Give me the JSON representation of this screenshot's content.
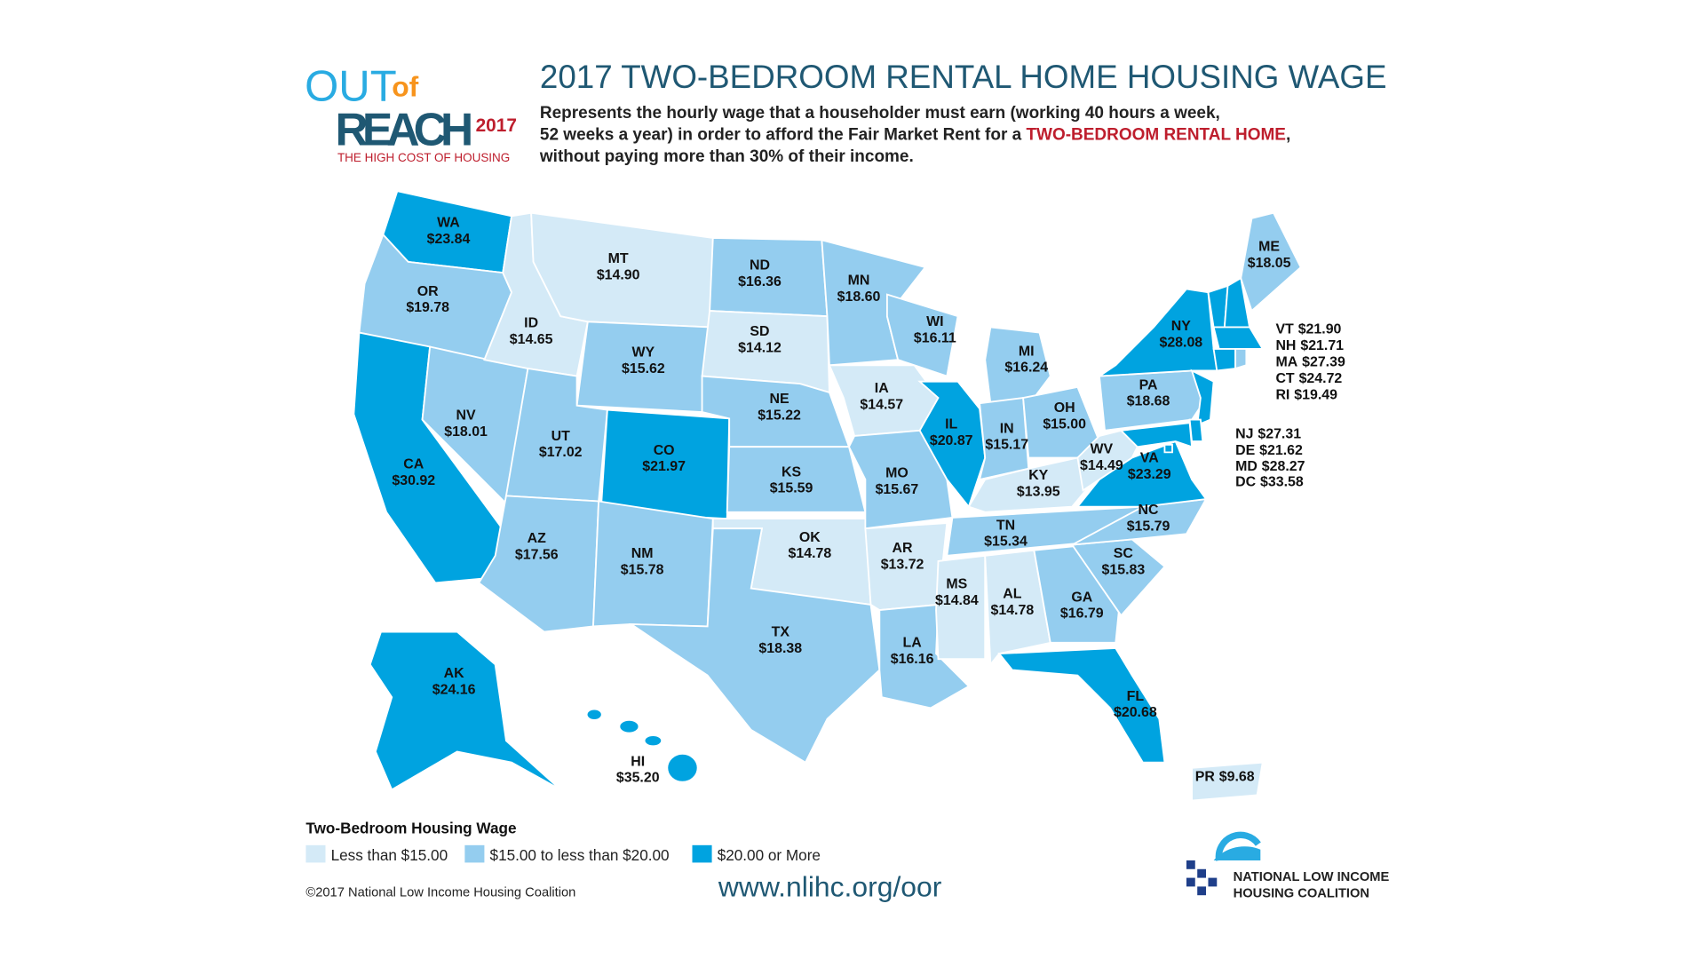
{
  "logo": {
    "out": "OUT",
    "of": "of",
    "reach": "REACH",
    "year": "2017",
    "tagline": "THE HIGH COST OF HOUSING"
  },
  "header": {
    "title": "2017 TWO-BEDROOM RENTAL HOME HOUSING WAGE",
    "line1": "Represents the hourly wage that a householder must earn (working 40 hours a week,",
    "line2": "52 weeks a year) in order to afford the Fair Market Rent for a ",
    "highlight": "TWO-BEDROOM RENTAL HOME",
    "line2_end": ",",
    "line3": "without paying more than 30% of their income."
  },
  "states": [
    {
      "abbr": "WA",
      "wage": 23.84,
      "wage_label": "$23.84"
    },
    {
      "abbr": "OR",
      "wage": 19.78,
      "wage_label": "$19.78"
    },
    {
      "abbr": "CA",
      "wage": 30.92,
      "wage_label": "$30.92"
    },
    {
      "abbr": "NV",
      "wage": 18.01,
      "wage_label": "$18.01"
    },
    {
      "abbr": "ID",
      "wage": 14.65,
      "wage_label": "$14.65"
    },
    {
      "abbr": "MT",
      "wage": 14.9,
      "wage_label": "$14.90"
    },
    {
      "abbr": "WY",
      "wage": 15.62,
      "wage_label": "$15.62"
    },
    {
      "abbr": "UT",
      "wage": 17.02,
      "wage_label": "$17.02"
    },
    {
      "abbr": "CO",
      "wage": 21.97,
      "wage_label": "$21.97"
    },
    {
      "abbr": "AZ",
      "wage": 17.56,
      "wage_label": "$17.56"
    },
    {
      "abbr": "NM",
      "wage": 15.78,
      "wage_label": "$15.78"
    },
    {
      "abbr": "ND",
      "wage": 16.36,
      "wage_label": "$16.36"
    },
    {
      "abbr": "SD",
      "wage": 14.12,
      "wage_label": "$14.12"
    },
    {
      "abbr": "NE",
      "wage": 15.22,
      "wage_label": "$15.22"
    },
    {
      "abbr": "KS",
      "wage": 15.59,
      "wage_label": "$15.59"
    },
    {
      "abbr": "OK",
      "wage": 14.78,
      "wage_label": "$14.78"
    },
    {
      "abbr": "TX",
      "wage": 18.38,
      "wage_label": "$18.38"
    },
    {
      "abbr": "MN",
      "wage": 18.6,
      "wage_label": "$18.60"
    },
    {
      "abbr": "IA",
      "wage": 14.57,
      "wage_label": "$14.57"
    },
    {
      "abbr": "MO",
      "wage": 15.67,
      "wage_label": "$15.67"
    },
    {
      "abbr": "AR",
      "wage": 13.72,
      "wage_label": "$13.72"
    },
    {
      "abbr": "LA",
      "wage": 16.16,
      "wage_label": "$16.16"
    },
    {
      "abbr": "WI",
      "wage": 16.11,
      "wage_label": "$16.11"
    },
    {
      "abbr": "IL",
      "wage": 20.87,
      "wage_label": "$20.87"
    },
    {
      "abbr": "MI",
      "wage": 16.24,
      "wage_label": "$16.24"
    },
    {
      "abbr": "IN",
      "wage": 15.17,
      "wage_label": "$15.17"
    },
    {
      "abbr": "OH",
      "wage": 15.0,
      "wage_label": "$15.00"
    },
    {
      "abbr": "KY",
      "wage": 13.95,
      "wage_label": "$13.95"
    },
    {
      "abbr": "TN",
      "wage": 15.34,
      "wage_label": "$15.34"
    },
    {
      "abbr": "MS",
      "wage": 14.84,
      "wage_label": "$14.84"
    },
    {
      "abbr": "AL",
      "wage": 14.78,
      "wage_label": "$14.78"
    },
    {
      "abbr": "GA",
      "wage": 16.79,
      "wage_label": "$16.79"
    },
    {
      "abbr": "FL",
      "wage": 20.68,
      "wage_label": "$20.68"
    },
    {
      "abbr": "SC",
      "wage": 15.83,
      "wage_label": "$15.83"
    },
    {
      "abbr": "NC",
      "wage": 15.79,
      "wage_label": "$15.79"
    },
    {
      "abbr": "VA",
      "wage": 23.29,
      "wage_label": "$23.29"
    },
    {
      "abbr": "WV",
      "wage": 14.49,
      "wage_label": "$14.49"
    },
    {
      "abbr": "PA",
      "wage": 18.68,
      "wage_label": "$18.68"
    },
    {
      "abbr": "NY",
      "wage": 28.08,
      "wage_label": "$28.08"
    },
    {
      "abbr": "ME",
      "wage": 18.05,
      "wage_label": "$18.05"
    },
    {
      "abbr": "AK",
      "wage": 24.16,
      "wage_label": "$24.16"
    },
    {
      "abbr": "HI",
      "wage": 35.2,
      "wage_label": "$35.20"
    },
    {
      "abbr": "VT",
      "wage": 21.9,
      "wage_label": "$21.90"
    },
    {
      "abbr": "NH",
      "wage": 21.71,
      "wage_label": "$21.71"
    },
    {
      "abbr": "MA",
      "wage": 27.39,
      "wage_label": "$27.39"
    },
    {
      "abbr": "CT",
      "wage": 24.72,
      "wage_label": "$24.72"
    },
    {
      "abbr": "RI",
      "wage": 19.49,
      "wage_label": "$19.49"
    },
    {
      "abbr": "NJ",
      "wage": 27.31,
      "wage_label": "$27.31"
    },
    {
      "abbr": "DE",
      "wage": 21.62,
      "wage_label": "$21.62"
    },
    {
      "abbr": "MD",
      "wage": 28.27,
      "wage_label": "$28.27"
    },
    {
      "abbr": "DC",
      "wage": 33.58,
      "wage_label": "$33.58"
    },
    {
      "abbr": "PR",
      "wage": 9.68,
      "wage_label": "$9.68"
    }
  ],
  "legend": {
    "title": "Two-Bedroom Housing Wage",
    "items": [
      {
        "label": "Less than $15.00",
        "color": "#d4eaf7",
        "below": 15
      },
      {
        "label": "$15.00 to less than $20.00",
        "color": "#94cdef",
        "from": 15,
        "below": 20
      },
      {
        "label": "$20.00 or More",
        "color": "#00a3e0",
        "from": 20
      }
    ]
  },
  "footer": {
    "copyright": "©2017 National Low Income Housing Coalition",
    "url": "www.nlihc.org/oor",
    "org_line1": "NATIONAL LOW INCOME",
    "org_line2": "HOUSING COALITION"
  }
}
